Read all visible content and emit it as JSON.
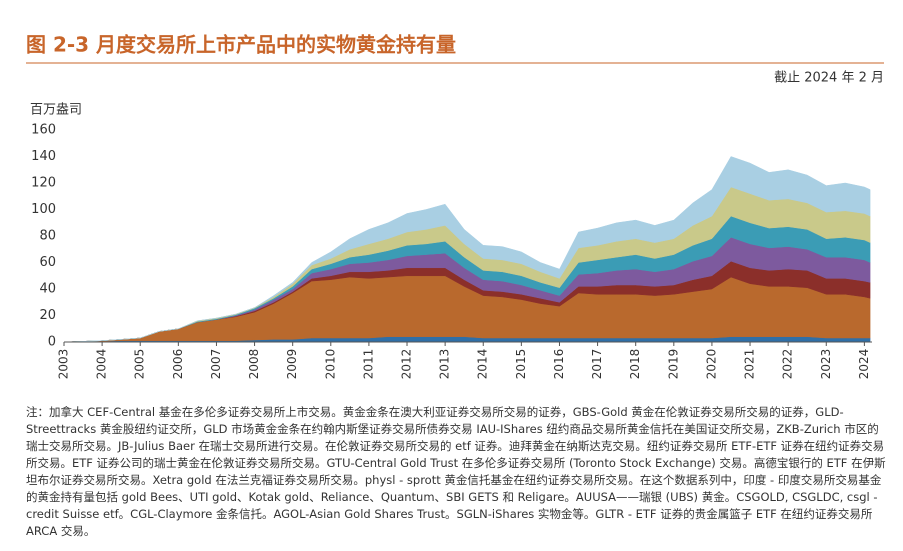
{
  "chart_data": {
    "type": "stacked_area",
    "title": "图 2-3 月度交易所上市产品中的实物黄金持有量",
    "subtitle": "截止 2024 年 2 月",
    "y_label": "百万盎司",
    "note": "注：加拿大 CEF-Central 基金在多伦多证券交易所上市交易。黄金金条在澳大利亚证券交易所交易的证券，GBS-Gold 黄金在伦敦证券交易所交易的证券，GLD-Streettracks 黄金股纽约证交所，GLD 市场黄金金条在约翰内斯堡证券交易所债券交易 IAU-IShares 纽约商品交易所黄金信托在美国证交所交易，ZKB-Zurich 市区的瑞士交易所交易。JB-Julius Baer 在瑞士交易所进行交易。在伦敦证券交易所交易的 etf 证券。迪拜黄金在纳斯达克交易。纽约证券交易所 ETF-ETF 证券在纽约证券交易所交易。ETF 证券公司的瑞士黄金在伦敦证券交易所交易。GTU-Central Gold Trust 在多伦多证券交易所 (Toronto Stock Exchange) 交易。高德宝银行的 ETF 在伊斯坦布尔证券交易所交易。Xetra gold 在法兰克福证券交易所交易。physl - sprott 黄金信托基金在纽约证券交易所交易。在这个数据系列中，印度 - 印度交易所交易基金的黄金持有量包括 gold Bees、UTI gold、Kotak gold、Reliance、Quantum、SBI GETS 和 Religare。AUUSA——瑞银 (UBS) 黄金。CSGOLD, CSGLDC, csgl - credit Suisse etf。CGL-Claymore 金条信托。AGOL-Asian Gold Shares Trust。SGLN-iShares 实物金等。GLTR - ETF 证券的贵金属篮子 ETF 在纽约证券交易所 ARCA 交易。",
    "x": [
      2003.0,
      2004.0,
      2004.5,
      2005.0,
      2005.5,
      2006.0,
      2006.5,
      2007.0,
      2007.5,
      2008.0,
      2008.5,
      2009.0,
      2009.5,
      2010.0,
      2010.5,
      2011.0,
      2011.5,
      2012.0,
      2012.5,
      2013.0,
      2013.5,
      2014.0,
      2014.5,
      2015.0,
      2015.5,
      2016.0,
      2016.5,
      2017.0,
      2017.5,
      2018.0,
      2018.5,
      2019.0,
      2019.5,
      2020.0,
      2020.5,
      2021.0,
      2021.5,
      2022.0,
      2022.5,
      2023.0,
      2023.5,
      2024.0,
      2024.15
    ],
    "series": [
      {
        "color": "#2f6fa7",
        "values": [
          0,
          0.5,
          1,
          1,
          1,
          1,
          1,
          1,
          1,
          1.5,
          2,
          2,
          3,
          3,
          3,
          3,
          4,
          4,
          4,
          4,
          4,
          3,
          3,
          3,
          3,
          3,
          3,
          3,
          3,
          3,
          3,
          3,
          3,
          3,
          4,
          4,
          4,
          4,
          4,
          3,
          3,
          3,
          3
        ]
      },
      {
        "color": "#b9692d",
        "values": [
          0,
          0.5,
          1,
          2,
          7,
          9,
          14,
          16,
          18,
          21,
          27,
          35,
          43,
          44,
          46,
          45,
          45,
          46,
          46,
          46,
          38,
          32,
          31,
          29,
          26,
          24,
          34,
          33,
          33,
          33,
          32,
          33,
          35,
          37,
          45,
          40,
          38,
          38,
          37,
          33,
          33,
          31,
          30
        ]
      },
      {
        "color": "#8b2f2a",
        "values": [
          0,
          0,
          0,
          0,
          0,
          0,
          0,
          0,
          0.5,
          1,
          1,
          1,
          2,
          3,
          4,
          5,
          5,
          6,
          6,
          6,
          5,
          4,
          4,
          4,
          4,
          3,
          5,
          6,
          7,
          7,
          7,
          7,
          9,
          10,
          12,
          12,
          12,
          13,
          13,
          12,
          12,
          12,
          12
        ]
      },
      {
        "color": "#7d5a9e",
        "values": [
          0,
          0,
          0,
          0,
          0,
          0,
          0,
          0,
          0.5,
          1,
          2,
          2,
          4,
          5,
          6,
          7,
          8,
          9,
          10,
          11,
          9,
          8,
          8,
          7,
          6,
          5,
          9,
          10,
          11,
          12,
          11,
          12,
          14,
          15,
          18,
          18,
          17,
          17,
          16,
          16,
          16,
          16,
          15
        ]
      },
      {
        "color": "#3b9cb5",
        "values": [
          0,
          0,
          0,
          0,
          0,
          0,
          0.5,
          0.5,
          0.5,
          1,
          1,
          2,
          3,
          4,
          5,
          6,
          7,
          8,
          8,
          9,
          8,
          7,
          7,
          7,
          6,
          6,
          9,
          10,
          10,
          11,
          10,
          11,
          12,
          13,
          16,
          16,
          15,
          15,
          15,
          14,
          15,
          15,
          15
        ]
      },
      {
        "color": "#c9c98a",
        "values": [
          0,
          0,
          0,
          0,
          0,
          0,
          0.5,
          0.5,
          0.5,
          0.5,
          1,
          2,
          3,
          4,
          6,
          8,
          9,
          10,
          11,
          12,
          10,
          9,
          9,
          9,
          8,
          7,
          11,
          11,
          12,
          12,
          12,
          12,
          15,
          17,
          22,
          22,
          21,
          21,
          20,
          20,
          20,
          20,
          20
        ]
      },
      {
        "color": "#a9cfe3",
        "values": [
          0,
          0,
          0,
          0,
          0,
          0,
          0,
          0,
          0,
          0,
          1,
          1,
          2,
          5,
          8,
          11,
          12,
          14,
          15,
          16,
          11,
          10,
          10,
          9,
          7,
          7,
          12,
          13,
          14,
          14,
          13,
          14,
          17,
          20,
          23,
          23,
          21,
          22,
          21,
          20,
          21,
          20,
          20
        ]
      }
    ],
    "xlim": [
      2003,
      2024.2
    ],
    "xticks": [
      2003,
      2004,
      2005,
      2006,
      2007,
      2008,
      2009,
      2010,
      2011,
      2012,
      2013,
      2014,
      2015,
      2016,
      2017,
      2018,
      2019,
      2020,
      2021,
      2022,
      2023,
      2024
    ],
    "ylim": [
      0,
      160
    ],
    "yticks": [
      0,
      20,
      40,
      60,
      80,
      100,
      120,
      140,
      160
    ],
    "grid": false
  }
}
